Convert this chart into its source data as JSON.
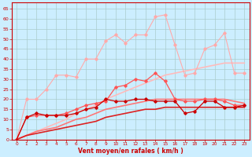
{
  "xlabel": "Vent moyen/en rafales ( km/h )",
  "background_color": "#cceeff",
  "grid_color": "#aacccc",
  "xlim": [
    -0.5,
    23.5
  ],
  "ylim": [
    0,
    68
  ],
  "yticks": [
    0,
    5,
    10,
    15,
    20,
    25,
    30,
    35,
    40,
    45,
    50,
    55,
    60,
    65
  ],
  "xticks": [
    0,
    1,
    2,
    3,
    4,
    5,
    6,
    7,
    8,
    9,
    10,
    11,
    12,
    13,
    14,
    15,
    16,
    17,
    18,
    19,
    20,
    21,
    22,
    23
  ],
  "series": [
    {
      "x": [
        0,
        1,
        2,
        3,
        4,
        5,
        6,
        7,
        8,
        9,
        10,
        11,
        12,
        13,
        14,
        15,
        16,
        17,
        18,
        19,
        20,
        21,
        22,
        23
      ],
      "y": [
        0,
        20,
        20,
        25,
        32,
        32,
        31,
        40,
        40,
        49,
        52,
        48,
        52,
        52,
        61,
        62,
        47,
        32,
        33,
        45,
        47,
        53,
        33,
        33
      ],
      "color": "#ffaaaa",
      "marker": "D",
      "markersize": 1.8,
      "linewidth": 0.8,
      "linestyle": "-",
      "zorder": 3
    },
    {
      "x": [
        0,
        1,
        2,
        3,
        4,
        5,
        6,
        7,
        8,
        9,
        10,
        11,
        12,
        13,
        14,
        15,
        16,
        17,
        18,
        19,
        20,
        21,
        22,
        23
      ],
      "y": [
        0,
        11,
        12,
        12,
        12,
        13,
        15,
        17,
        18,
        19,
        26,
        27,
        30,
        29,
        33,
        29,
        20,
        19,
        19,
        20,
        20,
        19,
        17,
        17
      ],
      "color": "#ff5555",
      "marker": "D",
      "markersize": 1.8,
      "linewidth": 0.9,
      "linestyle": "-",
      "zorder": 4
    },
    {
      "x": [
        0,
        1,
        2,
        3,
        4,
        5,
        6,
        7,
        8,
        9,
        10,
        11,
        12,
        13,
        14,
        15,
        16,
        17,
        18,
        19,
        20,
        21,
        22,
        23
      ],
      "y": [
        0,
        11,
        13,
        12,
        12,
        12,
        13,
        15,
        16,
        20,
        19,
        19,
        20,
        20,
        19,
        19,
        19,
        13,
        14,
        19,
        19,
        16,
        16,
        17
      ],
      "color": "#cc0000",
      "marker": "D",
      "markersize": 1.8,
      "linewidth": 0.9,
      "linestyle": "-",
      "zorder": 5
    },
    {
      "x": [
        0,
        1,
        2,
        3,
        4,
        5,
        6,
        7,
        8,
        9,
        10,
        11,
        12,
        13,
        14,
        15,
        16,
        17,
        18,
        19,
        20,
        21,
        22,
        23
      ],
      "y": [
        0,
        2,
        4,
        6,
        8,
        10,
        13,
        15,
        17,
        20,
        22,
        24,
        26,
        28,
        30,
        32,
        33,
        34,
        35,
        36,
        37,
        38,
        38,
        38
      ],
      "color": "#ffbbbb",
      "marker": null,
      "linewidth": 1.2,
      "linestyle": "-",
      "zorder": 2
    },
    {
      "x": [
        0,
        1,
        2,
        3,
        4,
        5,
        6,
        7,
        8,
        9,
        10,
        11,
        12,
        13,
        14,
        15,
        16,
        17,
        18,
        19,
        20,
        21,
        22,
        23
      ],
      "y": [
        0,
        2,
        4,
        5,
        6,
        8,
        10,
        11,
        13,
        15,
        16,
        17,
        18,
        19,
        20,
        20,
        20,
        20,
        20,
        20,
        20,
        20,
        19,
        18
      ],
      "color": "#ff7777",
      "marker": null,
      "linewidth": 1.2,
      "linestyle": "-",
      "zorder": 2
    },
    {
      "x": [
        0,
        1,
        2,
        3,
        4,
        5,
        6,
        7,
        8,
        9,
        10,
        11,
        12,
        13,
        14,
        15,
        16,
        17,
        18,
        19,
        20,
        21,
        22,
        23
      ],
      "y": [
        0,
        2,
        3,
        4,
        5,
        6,
        7,
        8,
        9,
        11,
        12,
        13,
        14,
        15,
        15,
        16,
        16,
        16,
        16,
        16,
        16,
        16,
        16,
        16
      ],
      "color": "#dd2222",
      "marker": null,
      "linewidth": 1.2,
      "linestyle": "-",
      "zorder": 2
    }
  ]
}
